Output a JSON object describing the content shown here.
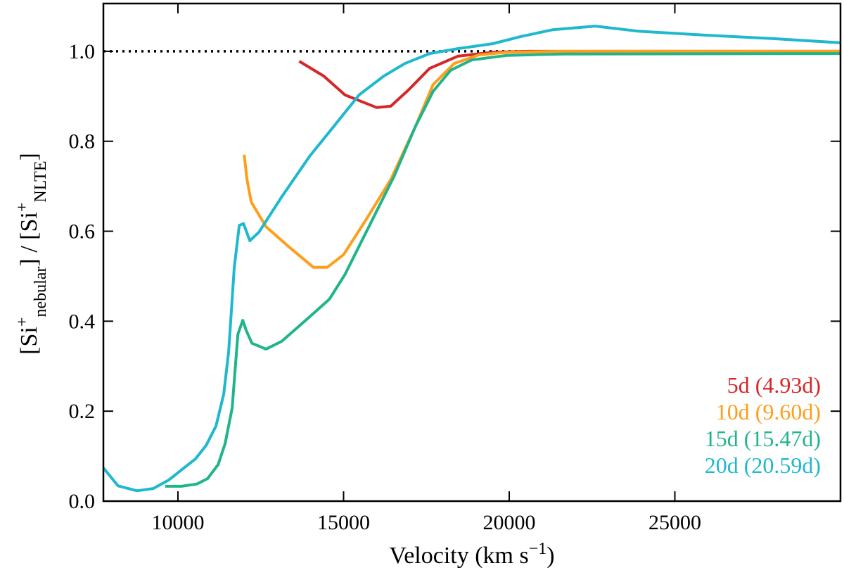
{
  "chart_data": {
    "type": "line",
    "xlabel": [
      "Velocity (km s",
      "−1",
      ")"
    ],
    "ylabel": [
      "[Si",
      "+",
      "nebular",
      "] / [Si",
      "+",
      "NLTE",
      "]"
    ],
    "xlim": [
      7750,
      30000
    ],
    "ylim": [
      0,
      1.1
    ],
    "xticks": [
      10000,
      15000,
      20000,
      25000
    ],
    "yticks": [
      {
        "value": 0,
        "label": "0.0"
      },
      0.2,
      0.4,
      0.6,
      0.8,
      {
        "value": 1,
        "label": "1.0"
      }
    ],
    "reference_line": 1,
    "legend": "lower right",
    "series": [
      {
        "name": "5d (4.93d)",
        "color": "#d62728",
        "x": [
          13660,
          14404,
          15043,
          16000,
          16426,
          16957,
          17596,
          18447,
          19511,
          20574,
          30000
        ],
        "values": [
          0.978,
          0.945,
          0.903,
          0.875,
          0.878,
          0.914,
          0.962,
          0.989,
          0.998,
          1.0,
          1.0
        ]
      },
      {
        "name": "10d (9.60d)",
        "color": "#ff9e1b",
        "x": [
          12000,
          12085,
          12213,
          12660,
          13340,
          14085,
          14511,
          15000,
          15681,
          16426,
          17170,
          17702,
          18340,
          19085,
          19936,
          21640,
          30000
        ],
        "values": [
          0.77,
          0.715,
          0.665,
          0.61,
          0.566,
          0.52,
          0.52,
          0.548,
          0.626,
          0.715,
          0.833,
          0.926,
          0.973,
          0.992,
          0.998,
          1.0,
          1.0
        ]
      },
      {
        "name": "15d (15.47d)",
        "color": "#20b48a",
        "x": [
          9617,
          10106,
          10574,
          10894,
          11213,
          11426,
          11638,
          11809,
          11957,
          12064,
          12234,
          12660,
          13128,
          13979,
          14574,
          15043,
          15681,
          16532,
          17170,
          17702,
          18234,
          18872,
          19936,
          21640,
          30000
        ],
        "values": [
          0.033,
          0.033,
          0.038,
          0.05,
          0.081,
          0.128,
          0.207,
          0.371,
          0.402,
          0.379,
          0.351,
          0.338,
          0.355,
          0.41,
          0.449,
          0.504,
          0.598,
          0.723,
          0.833,
          0.911,
          0.958,
          0.981,
          0.991,
          0.994,
          0.995
        ]
      },
      {
        "name": "20d (20.59d)",
        "color": "#1fb8cf",
        "x": [
          7750,
          8191,
          8766,
          9255,
          9723,
          10532,
          10851,
          11149,
          11383,
          11532,
          11702,
          11851,
          11979,
          12170,
          12447,
          13128,
          13979,
          14617,
          15468,
          16213,
          16851,
          17596,
          18447,
          19511,
          20362,
          21319,
          22596,
          23872,
          25894,
          28021,
          30000
        ],
        "values": [
          0.074,
          0.034,
          0.023,
          0.028,
          0.047,
          0.094,
          0.124,
          0.167,
          0.238,
          0.332,
          0.52,
          0.613,
          0.617,
          0.579,
          0.598,
          0.676,
          0.767,
          0.825,
          0.903,
          0.945,
          0.973,
          0.995,
          1.006,
          1.017,
          1.033,
          1.048,
          1.056,
          1.045,
          1.036,
          1.028,
          1.019
        ]
      }
    ]
  }
}
